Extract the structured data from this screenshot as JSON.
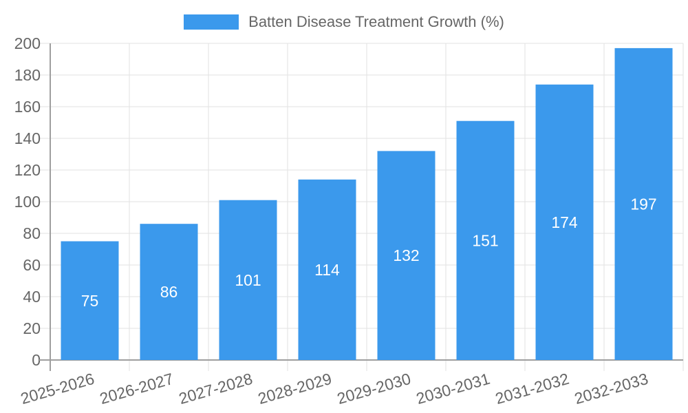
{
  "legend": {
    "label": "Batten Disease Treatment Growth (%)",
    "swatch_color": "#3B99EC"
  },
  "chart_data": {
    "type": "bar",
    "title": "Batten Disease Treatment Growth (%)",
    "categories": [
      "2025-2026",
      "2026-2027",
      "2027-2028",
      "2028-2029",
      "2029-2030",
      "2030-2031",
      "2031-2032",
      "2032-2033"
    ],
    "values": [
      75,
      86,
      101,
      114,
      132,
      151,
      174,
      197
    ],
    "xlabel": "",
    "ylabel": "",
    "ylim": [
      0,
      200
    ],
    "ytick_step": 20,
    "yticks": [
      0,
      20,
      40,
      60,
      80,
      100,
      120,
      140,
      160,
      180,
      200
    ],
    "grid": true,
    "legend_position": "top-center",
    "x_label_rotation": -16,
    "value_labels": "centered-inside-bars",
    "colors": {
      "bar": "#3B99EC",
      "value_label": "#FFFFFF",
      "axis": "#9E9E9E",
      "grid": "#E2E2E2",
      "tick": "#D6D6D6",
      "tick_label": "#666666",
      "legend_text": "#666666",
      "background": "#FFFFFF"
    }
  }
}
